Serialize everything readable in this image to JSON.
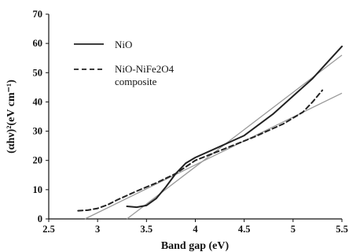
{
  "chart_data": {
    "type": "line",
    "xlabel": "Band gap (eV)",
    "ylabel": "(αhν)²(eV cm⁻¹)",
    "xlim": [
      2.5,
      5.5
    ],
    "ylim": [
      0,
      70
    ],
    "xticks": [
      "2.5",
      "3",
      "3.5",
      "4",
      "4.5",
      "5",
      "5.5"
    ],
    "yticks": [
      "0",
      "10",
      "20",
      "30",
      "40",
      "50",
      "60",
      "70"
    ],
    "grid": false,
    "legend_position": "top-left",
    "series": [
      {
        "name": "NiO",
        "style": "solid",
        "color": "#222222",
        "x": [
          3.3,
          3.4,
          3.5,
          3.6,
          3.7,
          3.8,
          3.9,
          4.0,
          4.2,
          4.5,
          4.8,
          5.0,
          5.2,
          5.35,
          5.5
        ],
        "y": [
          4.3,
          4.0,
          4.6,
          7.0,
          11.0,
          15.5,
          19.0,
          21.0,
          24.0,
          28.5,
          36.0,
          42.0,
          48.0,
          53.5,
          59.0
        ]
      },
      {
        "name": "NiO-NiFe2O4",
        "name_line2": "composite",
        "style": "dashed",
        "color": "#222222",
        "x": [
          2.8,
          2.9,
          3.0,
          3.1,
          3.2,
          3.4,
          3.6,
          3.8,
          4.0,
          4.3,
          4.6,
          4.9,
          5.1,
          5.2,
          5.3
        ],
        "y": [
          2.8,
          3.0,
          3.6,
          4.8,
          6.5,
          9.5,
          12.3,
          15.5,
          20.0,
          24.0,
          28.0,
          32.5,
          36.5,
          40.0,
          44.0
        ]
      }
    ],
    "fit_lines": [
      {
        "color": "#9a9a9a",
        "x": [
          3.3,
          5.5
        ],
        "y": [
          0,
          56
        ]
      },
      {
        "color": "#9a9a9a",
        "x": [
          2.87,
          5.5
        ],
        "y": [
          0,
          43
        ]
      }
    ]
  }
}
